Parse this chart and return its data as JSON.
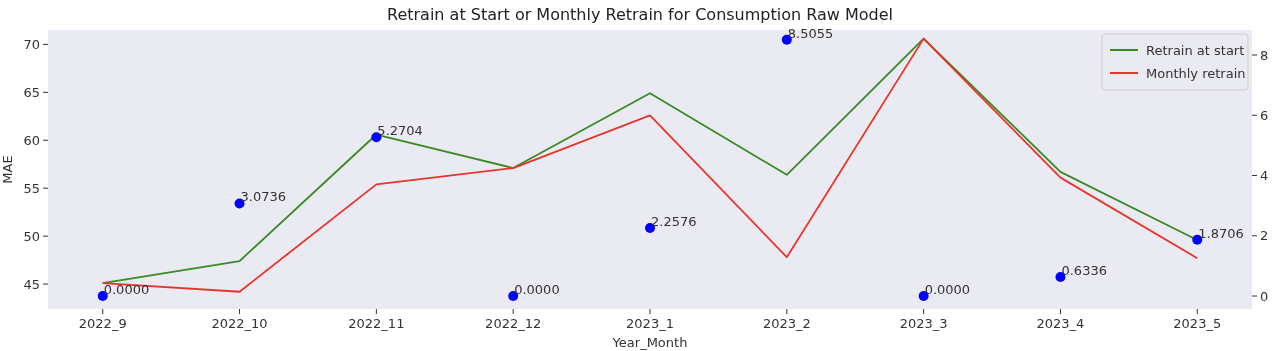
{
  "chart_data": {
    "type": "line",
    "title": "Retrain at Start or Monthly Retrain for Consumption Raw Model",
    "xlabel": "Year_Month",
    "ylabel": "MAE",
    "categories": [
      "2022_9",
      "2022_10",
      "2022_11",
      "2022_12",
      "2023_1",
      "2023_2",
      "2023_3",
      "2023_4",
      "2023_5"
    ],
    "series": [
      {
        "name": "Retrain at start",
        "color": "#388a23",
        "values": [
          45.1,
          47.4,
          60.6,
          57.1,
          64.9,
          56.4,
          70.6,
          56.7,
          49.6
        ]
      },
      {
        "name": "Monthly retrain",
        "color": "#e8342a",
        "values": [
          45.1,
          44.2,
          55.4,
          57.1,
          62.6,
          47.8,
          70.6,
          56.1,
          47.7
        ]
      },
      {
        "type": "scatter",
        "axis": "y2",
        "color": "#0000ff",
        "marker": "circle",
        "values": [
          0,
          3.0736,
          5.2704,
          0,
          2.2576,
          8.5055,
          0,
          0.6336,
          1.8706
        ],
        "value_labels": [
          "0.0000",
          "3.0736",
          "5.2704",
          "0.0000",
          "2.2576",
          "8.5055",
          "0.0000",
          "0.6336",
          "1.8706"
        ]
      }
    ],
    "ylim": [
      42.4,
      71.5
    ],
    "yticks": [
      45,
      50,
      55,
      60,
      65,
      70
    ],
    "y2lim": [
      -0.43,
      8.83
    ],
    "y2ticks": [
      0,
      2,
      4,
      6,
      8
    ],
    "grid": false,
    "legend": "top right",
    "marker": "none"
  }
}
